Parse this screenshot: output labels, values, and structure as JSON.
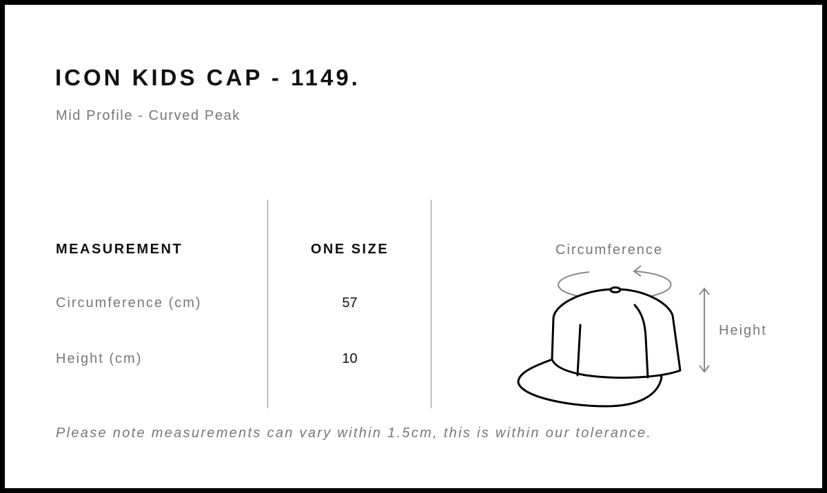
{
  "title": "ICON KIDS CAP - 1149.",
  "subtitle": "Mid Profile - Curved Peak",
  "table": {
    "headers": [
      "MEASUREMENT",
      "ONE SIZE"
    ],
    "rows": [
      {
        "label": "Circumference (cm)",
        "value": "57"
      },
      {
        "label": "Height (cm)",
        "value": "10"
      }
    ]
  },
  "diagram": {
    "circumference_label": "Circumference",
    "height_label": "Height",
    "icon": "cap-illustration"
  },
  "note": "Please note measurements can vary within 1.5cm, this is within our tolerance."
}
